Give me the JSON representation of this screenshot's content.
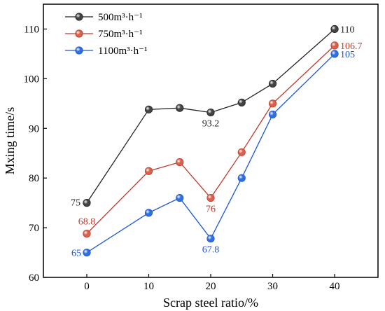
{
  "chart_data": {
    "type": "line",
    "xlabel": "Scrap steel ratio/%",
    "ylabel": "Mxing time/s",
    "xlim": [
      -7,
      47
    ],
    "ylim": [
      60,
      115
    ],
    "x_ticks": [
      0,
      10,
      20,
      30,
      40
    ],
    "y_ticks": [
      60,
      70,
      80,
      90,
      100,
      110
    ],
    "grid": false,
    "legend_position": "top-left",
    "series": [
      {
        "name": "500m³·h⁻¹",
        "color": "#444444",
        "line_color": "#222222",
        "x": [
          0,
          10,
          15,
          20,
          25,
          30,
          40
        ],
        "y": [
          75,
          93.8,
          94.1,
          93.2,
          95.2,
          99,
          110
        ],
        "labels": [
          {
            "x": 0,
            "y": 75,
            "text": "75"
          },
          {
            "x": 20,
            "y": 93.2,
            "text": "93.2"
          },
          {
            "x": 40,
            "y": 110,
            "text": "110"
          }
        ]
      },
      {
        "name": "750m³·h⁻¹",
        "color": "#d9614d",
        "line_color": "#c0392b",
        "x": [
          0,
          10,
          15,
          20,
          25,
          30,
          40
        ],
        "y": [
          68.8,
          81.4,
          83.2,
          76,
          85.2,
          95,
          106.7
        ],
        "labels": [
          {
            "x": 0,
            "y": 68.8,
            "text": "68.8"
          },
          {
            "x": 20,
            "y": 76,
            "text": "76"
          },
          {
            "x": 40,
            "y": 106.7,
            "text": "106.7"
          }
        ]
      },
      {
        "name": "1100m³·h⁻¹",
        "color": "#2f6fe0",
        "line_color": "#1a56d6",
        "x": [
          0,
          10,
          15,
          20,
          25,
          30,
          40
        ],
        "y": [
          65,
          73,
          76,
          67.8,
          80,
          92.8,
          105
        ],
        "labels": [
          {
            "x": 0,
            "y": 65,
            "text": "65"
          },
          {
            "x": 20,
            "y": 67.8,
            "text": "67.8"
          },
          {
            "x": 40,
            "y": 105,
            "text": "105"
          }
        ]
      }
    ]
  }
}
